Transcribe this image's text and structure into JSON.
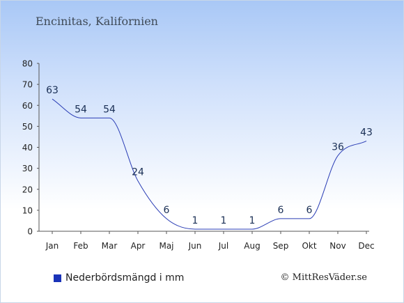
{
  "title": "Encinitas, Kalifornien",
  "legend_label": "Nederbördsmängd i mm",
  "credit": "© MittResVäder.se",
  "colors": {
    "line": "#2a3db5",
    "legend_swatch": "#1a33b8",
    "label": "#1a2f55"
  },
  "chart_data": {
    "type": "line",
    "categories": [
      "Jan",
      "Feb",
      "Mar",
      "Apr",
      "Maj",
      "Jun",
      "Jul",
      "Aug",
      "Sep",
      "Okt",
      "Nov",
      "Dec"
    ],
    "series": [
      {
        "name": "Nederbördsmängd i mm",
        "values": [
          63,
          54,
          54,
          24,
          6,
          1,
          1,
          1,
          6,
          6,
          36,
          43
        ]
      }
    ],
    "ylim": [
      0,
      80
    ],
    "yticks": [
      0,
      10,
      20,
      30,
      40,
      50,
      60,
      70,
      80
    ],
    "grid": false,
    "legend_position": "bottom-left"
  }
}
